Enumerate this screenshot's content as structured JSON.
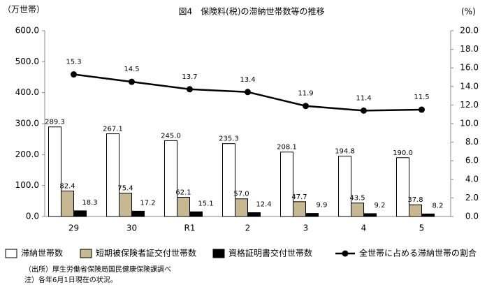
{
  "chart_data": {
    "type": "bar",
    "title": "図4　保険料(税)の滞納世帯数等の推移",
    "y_label": "（万世帯）",
    "y2_label": "(%)",
    "categories": [
      "29",
      "30",
      "R1",
      "2",
      "3",
      "4",
      "5"
    ],
    "series": [
      {
        "name": "滞納世帯数",
        "color": "#ffffff",
        "values": [
          289.3,
          267.1,
          245.0,
          235.3,
          208.1,
          194.8,
          190.0
        ],
        "value_labels": [
          "289.3",
          "267.1",
          "245.0",
          "235.3",
          "208.1",
          "194.8",
          "190.0"
        ]
      },
      {
        "name": "短期被保険者証交付世帯数",
        "color": "#c6b992",
        "values": [
          82.4,
          75.4,
          62.1,
          57.0,
          47.7,
          43.5,
          37.8
        ],
        "value_labels": [
          "82.4",
          "75.4",
          "62.1",
          "57.0",
          "47.7",
          "43.5",
          "37.8"
        ]
      },
      {
        "name": "資格証明書交付世帯数",
        "color": "#000000",
        "values": [
          18.3,
          17.2,
          15.1,
          12.4,
          9.9,
          9.2,
          8.2
        ]
      },
      {
        "name": "全世帯に占める滞納世帯の割合",
        "color": "#000000",
        "type": "line",
        "axis": "y2",
        "values": [
          15.3,
          14.5,
          13.7,
          13.4,
          11.9,
          11.4,
          11.5
        ]
      }
    ],
    "ylim": [
      0,
      600
    ],
    "yticks": [
      {
        "value": 0,
        "label": "0.0"
      },
      {
        "value": 100,
        "label": "100.0"
      },
      {
        "value": 200,
        "label": "200.0"
      },
      {
        "value": 300,
        "label": "300.0"
      },
      {
        "value": 400,
        "label": "400.0"
      },
      {
        "value": 500,
        "label": "500.0"
      },
      {
        "value": 600,
        "label": "600.0"
      }
    ],
    "y2lim": [
      0,
      20
    ],
    "y2ticks": [
      {
        "value": 0,
        "label": "0.0"
      },
      {
        "value": 2,
        "label": "2.0"
      },
      {
        "value": 4,
        "label": "4.0"
      },
      {
        "value": 6,
        "label": "6.0"
      },
      {
        "value": 8,
        "label": "8.0"
      },
      {
        "value": 10,
        "label": "10.0"
      },
      {
        "value": 12,
        "label": "12.0"
      },
      {
        "value": 14,
        "label": "14.0"
      },
      {
        "value": 16,
        "label": "16.0"
      },
      {
        "value": 18,
        "label": "18.0"
      },
      {
        "value": 20,
        "label": "20.0"
      }
    ],
    "notes": [
      "（出所）厚生労働省保険局国民健康保険課調べ",
      "注）各年6月1日現在の状況。"
    ]
  }
}
